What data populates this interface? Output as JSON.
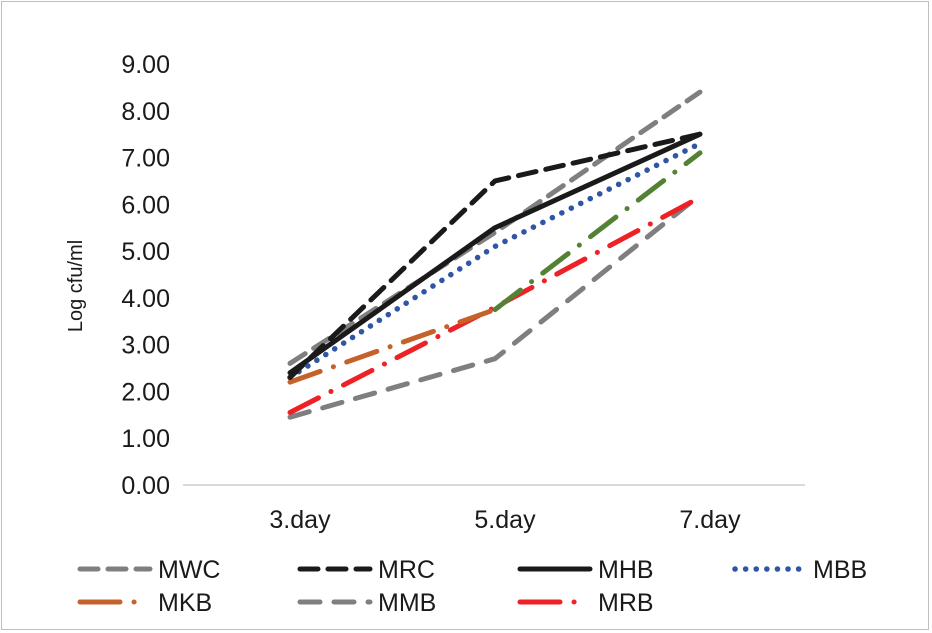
{
  "chart_data": {
    "type": "line",
    "title": "",
    "xlabel": "",
    "ylabel": "Log cfu/ml",
    "categories": [
      "3.day",
      "5.day",
      "7.day"
    ],
    "ylim": [
      0,
      9
    ],
    "yticks": [
      "0.00",
      "1.00",
      "2.00",
      "3.00",
      "4.00",
      "5.00",
      "6.00",
      "7.00",
      "8.00",
      "9.00"
    ],
    "grid": false,
    "legend_position": "bottom",
    "series": [
      {
        "name": "MWC",
        "values": [
          2.6,
          5.4,
          8.4
        ],
        "color": "#7f7f7f",
        "style": "dash"
      },
      {
        "name": "MRC",
        "values": [
          2.3,
          6.5,
          7.5
        ],
        "color": "#1a1a1a",
        "style": "dash"
      },
      {
        "name": "MHB",
        "values": [
          2.4,
          5.5,
          7.5
        ],
        "color": "#1a1a1a",
        "style": "solid"
      },
      {
        "name": "MBB",
        "values": [
          2.3,
          5.1,
          7.3
        ],
        "color": "#2f55a4",
        "style": "dot"
      },
      {
        "name": "MKB",
        "values": [
          2.2,
          3.75,
          7.1
        ],
        "color": "#c5622a",
        "color2": "#548235",
        "style": "dashdot"
      },
      {
        "name": "MMB",
        "values": [
          1.45,
          2.7,
          6.2
        ],
        "color": "#7f7f7f",
        "style": "longdash"
      },
      {
        "name": "MRB",
        "values": [
          1.55,
          3.8,
          6.15
        ],
        "color": "#ee2127",
        "style": "dashdot"
      }
    ]
  }
}
